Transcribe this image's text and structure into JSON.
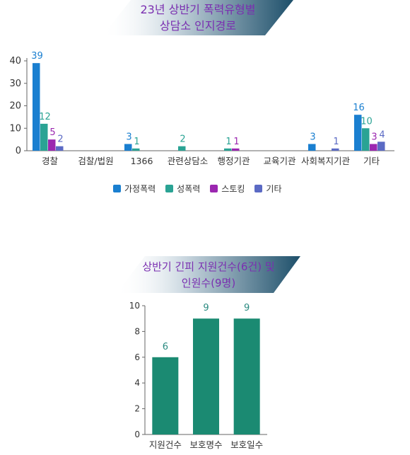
{
  "chart1_banner": {
    "line1": "23년 상반기 폭력유형별",
    "line2": "상담소 인지경로"
  },
  "chart2_banner": {
    "line1": "상반기 긴피 지원건수(6건) 및",
    "line2": "인원수(9명)"
  },
  "chart_data": [
    {
      "type": "bar",
      "categories": [
        "경찰",
        "검찰/법원",
        "1366",
        "관련상담소",
        "행정기관",
        "교육기관",
        "사회복지기관",
        "기타"
      ],
      "series": [
        {
          "name": "가정폭력",
          "color": "#1a7fd0",
          "values": [
            39,
            0,
            3,
            0,
            0,
            0,
            3,
            16
          ]
        },
        {
          "name": "성폭력",
          "color": "#2aa394",
          "values": [
            12,
            0,
            1,
            2,
            1,
            0,
            0,
            10
          ]
        },
        {
          "name": "스토킹",
          "color": "#9b27b0",
          "values": [
            5,
            0,
            0,
            0,
            1,
            0,
            0,
            3
          ]
        },
        {
          "name": "기타",
          "color": "#5b6ac4",
          "values": [
            2,
            0,
            0,
            0,
            0,
            0,
            1,
            4
          ]
        }
      ],
      "labels": [
        [
          "39",
          "",
          "3",
          "",
          "",
          "",
          "3",
          "16"
        ],
        [
          "12",
          "",
          "1",
          "2",
          "1",
          "",
          "",
          "10"
        ],
        [
          "5",
          "",
          "",
          "",
          "1",
          "",
          "",
          "3"
        ],
        [
          "2",
          "",
          "",
          "",
          "",
          "",
          "1",
          "4"
        ]
      ],
      "yticks": [
        0,
        10,
        20,
        30,
        40
      ],
      "ylim": [
        0,
        40
      ],
      "legend_position": "bottom",
      "grid": false
    },
    {
      "type": "bar",
      "categories": [
        "지원건수",
        "보호명수",
        "보호일수"
      ],
      "values": [
        6,
        9,
        9
      ],
      "color": "#1b8a72",
      "label_color": "#2a8a80",
      "yticks": [
        0,
        2,
        4,
        6,
        8,
        10
      ],
      "ylim": [
        0,
        10
      ],
      "grid": false
    }
  ]
}
